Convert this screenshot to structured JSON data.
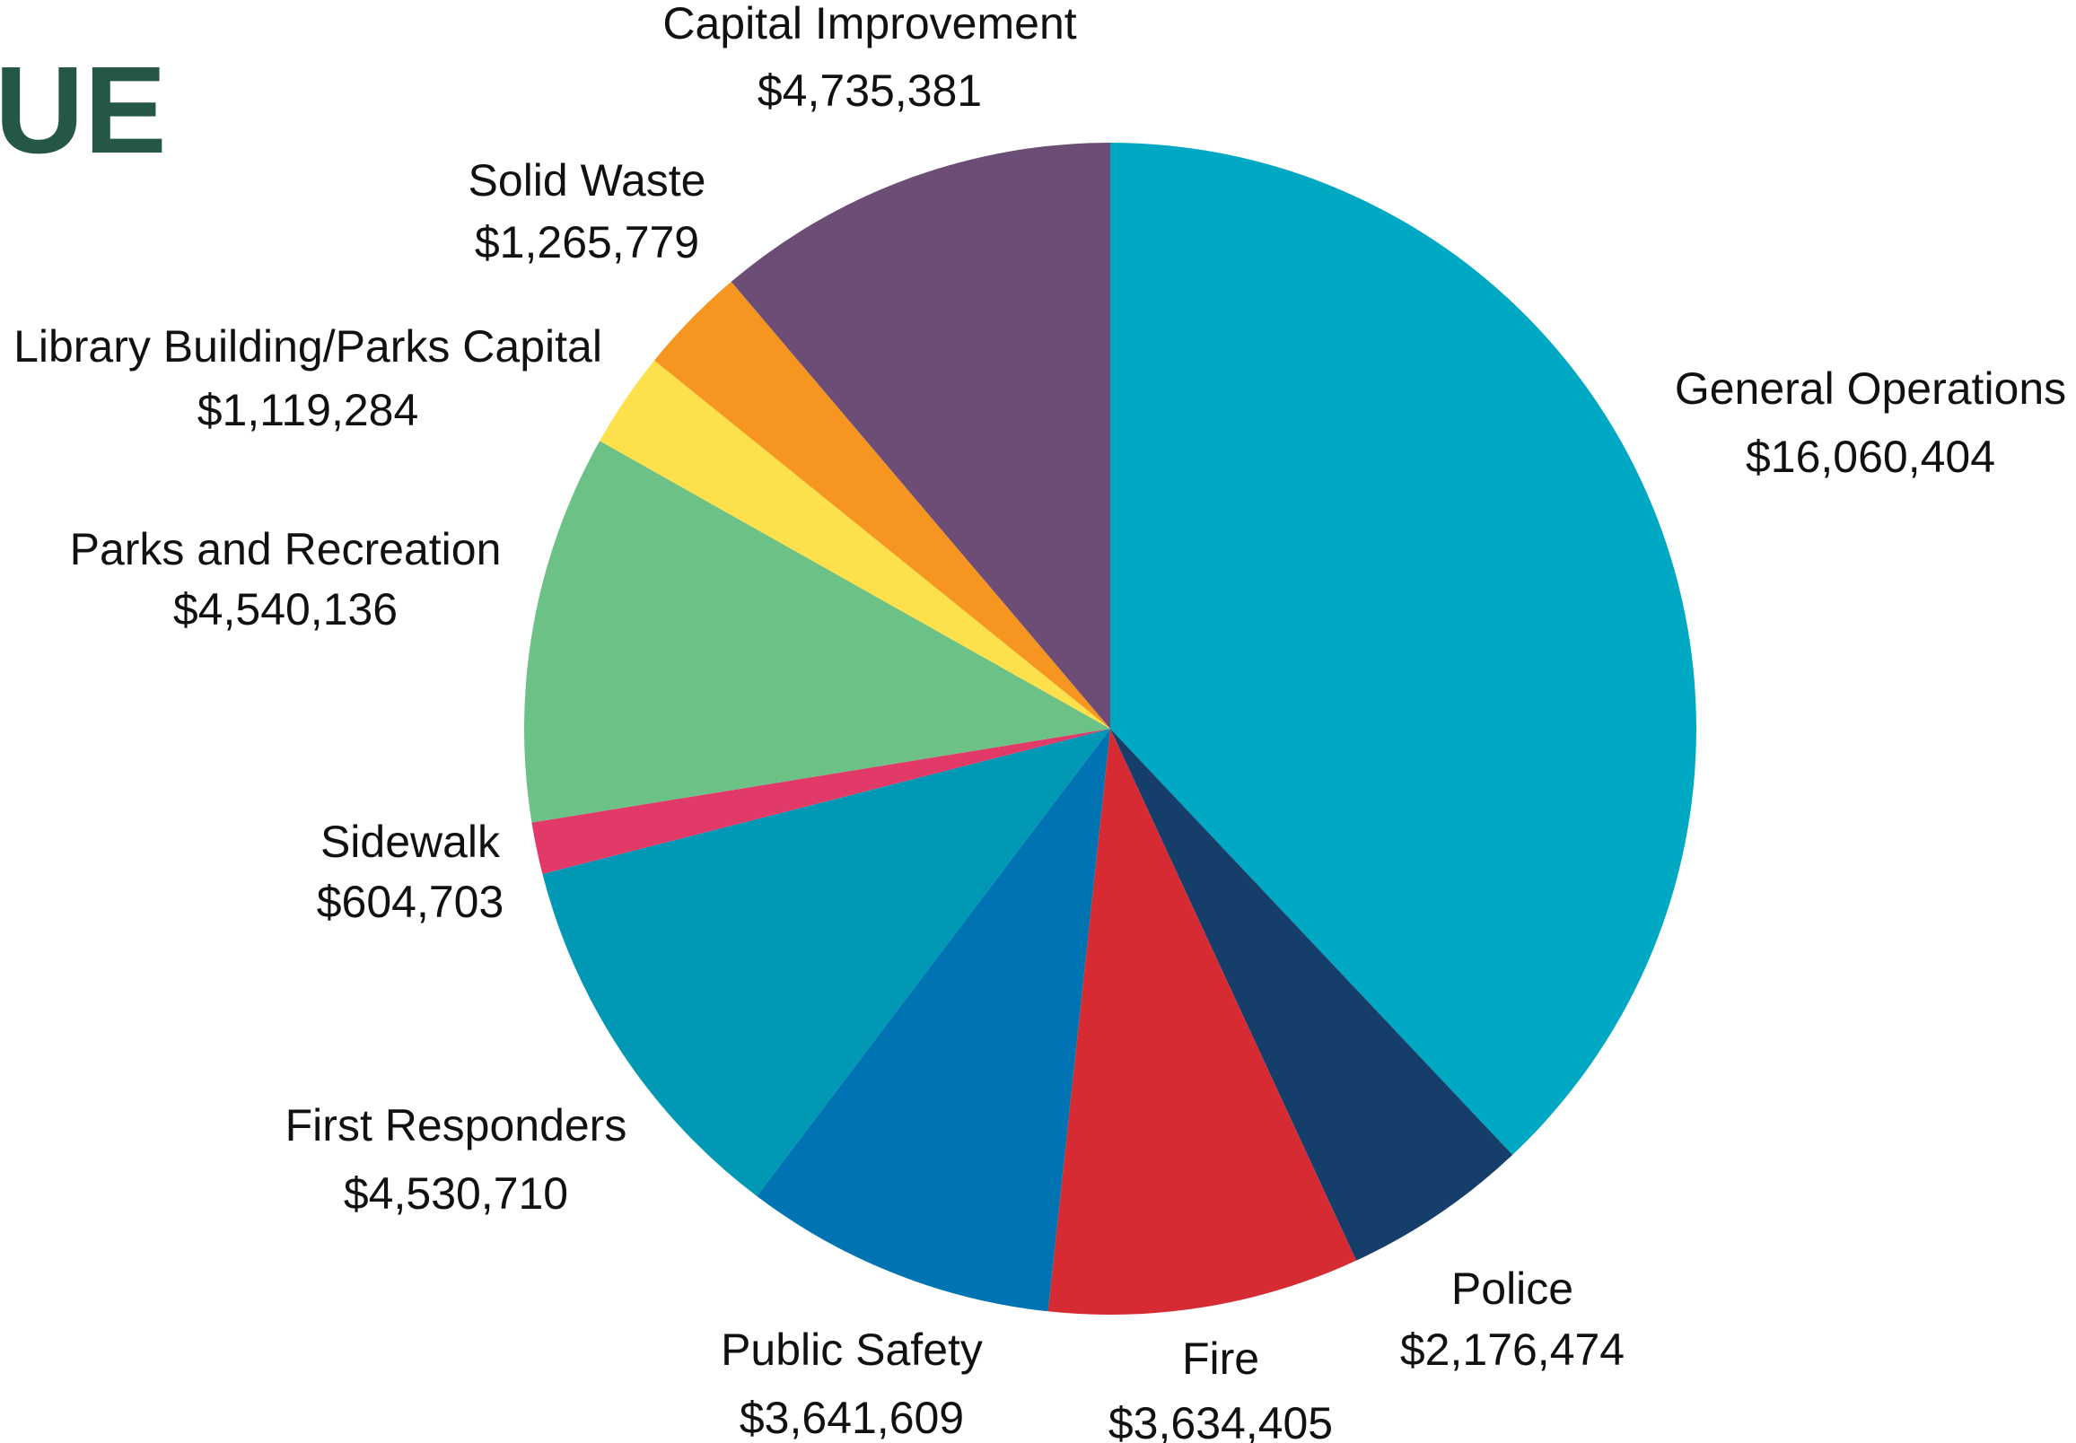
{
  "page": {
    "heading_fragment": "UE",
    "heading_color": "#245745"
  },
  "chart_data": {
    "type": "pie",
    "start_angle_deg": 0,
    "direction": "clockwise",
    "slices": [
      {
        "label": "General Operations",
        "value": 16060404,
        "value_label": "$16,060,404",
        "color": "#00A9C3"
      },
      {
        "label": "Police",
        "value": 2176474,
        "value_label": "$2,176,474",
        "color": "#163E6A"
      },
      {
        "label": "Fire",
        "value": 3634405,
        "value_label": "$3,634,405",
        "color": "#D72B33"
      },
      {
        "label": "Public Safety",
        "value": 3641609,
        "value_label": "$3,641,609",
        "color": "#0073B2"
      },
      {
        "label": "First Responders",
        "value": 4530710,
        "value_label": "$4,530,710",
        "color": "#0098B4"
      },
      {
        "label": "Sidewalk",
        "value": 604703,
        "value_label": "$604,703",
        "color": "#E23A68"
      },
      {
        "label": "Parks and Recreation",
        "value": 4540136,
        "value_label": "$4,540,136",
        "color": "#6CC286"
      },
      {
        "label": "Library Building/Parks Capital",
        "value": 1119284,
        "value_label": "$1,119,284",
        "color": "#FCE04C"
      },
      {
        "label": "Solid Waste",
        "value": 1265779,
        "value_label": "$1,265,779",
        "color": "#F6951F"
      },
      {
        "label": "Capital Improvement",
        "value": 4735381,
        "value_label": "$4,735,381",
        "color": "#6C4D76"
      }
    ]
  }
}
